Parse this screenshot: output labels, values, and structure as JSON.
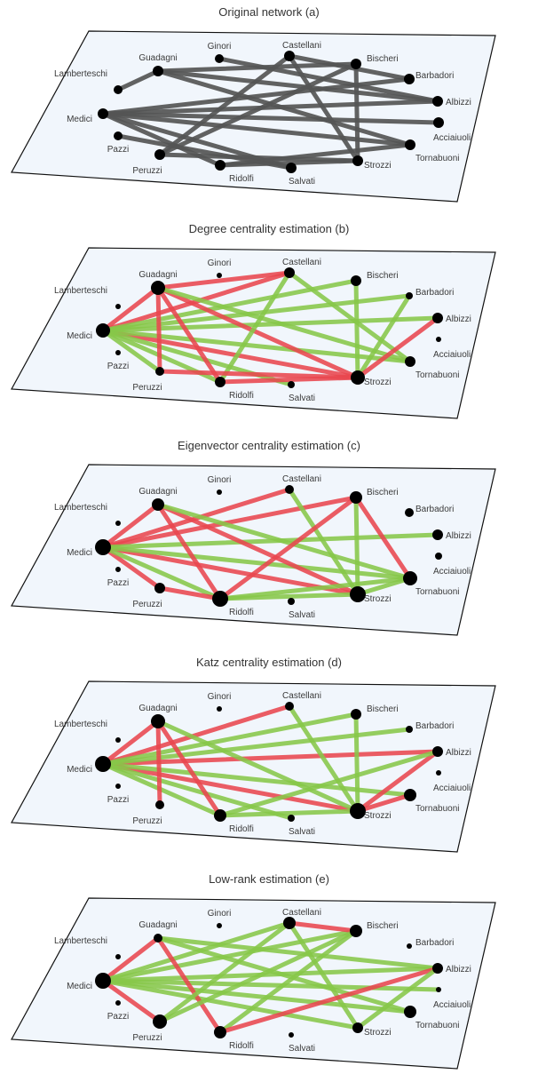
{
  "colors": {
    "plane_fill": "#f1f6fc",
    "plane_stroke": "#111111",
    "node": "#000000",
    "edge_original": "#555555",
    "edge_red": "#e8474e",
    "edge_green": "#86c749"
  },
  "nodes": [
    "Acciaiuoli",
    "Albizzi",
    "Barbadori",
    "Bischeri",
    "Castellani",
    "Ginori",
    "Guadagni",
    "Lamberteschi",
    "Medici",
    "Pazzi",
    "Peruzzi",
    "Ridolfi",
    "Salvati",
    "Strozzi",
    "Tornabuoni"
  ],
  "panels": [
    {
      "title": "Original network (a)",
      "edges": [
        [
          "Medici",
          "Albizzi",
          "o"
        ],
        [
          "Medici",
          "Barbadori",
          "o"
        ],
        [
          "Medici",
          "Acciaiuoli",
          "o"
        ],
        [
          "Medici",
          "Tornabuoni",
          "o"
        ],
        [
          "Medici",
          "Ridolfi",
          "o"
        ],
        [
          "Medici",
          "Salvati",
          "o"
        ],
        [
          "Guadagni",
          "Lamberteschi",
          "o"
        ],
        [
          "Guadagni",
          "Bischeri",
          "o"
        ],
        [
          "Guadagni",
          "Albizzi",
          "o"
        ],
        [
          "Guadagni",
          "Tornabuoni",
          "o"
        ],
        [
          "Castellani",
          "Peruzzi",
          "o"
        ],
        [
          "Castellani",
          "Barbadori",
          "o"
        ],
        [
          "Castellani",
          "Strozzi",
          "o"
        ],
        [
          "Bischeri",
          "Peruzzi",
          "o"
        ],
        [
          "Bischeri",
          "Strozzi",
          "o"
        ],
        [
          "Albizzi",
          "Ginori",
          "o"
        ],
        [
          "Peruzzi",
          "Strozzi",
          "o"
        ],
        [
          "Ridolfi",
          "Strozzi",
          "o"
        ],
        [
          "Ridolfi",
          "Tornabuoni",
          "o"
        ],
        [
          "Pazzi",
          "Salvati",
          "o"
        ]
      ],
      "node_sizes": {
        "Acciaiuoli": 6,
        "Albizzi": 6,
        "Barbadori": 6,
        "Bischeri": 6,
        "Castellani": 6,
        "Ginori": 5,
        "Guadagni": 6,
        "Lamberteschi": 5,
        "Medici": 6,
        "Pazzi": 5,
        "Peruzzi": 6,
        "Ridolfi": 6,
        "Salvati": 6,
        "Strozzi": 6,
        "Tornabuoni": 6
      }
    },
    {
      "title": "Degree centrality estimation (b)",
      "edges": [
        [
          "Medici",
          "Guadagni",
          "r"
        ],
        [
          "Medici",
          "Castellani",
          "r"
        ],
        [
          "Medici",
          "Strozzi",
          "r"
        ],
        [
          "Medici",
          "Bischeri",
          "g"
        ],
        [
          "Medici",
          "Barbadori",
          "g"
        ],
        [
          "Medici",
          "Albizzi",
          "g"
        ],
        [
          "Medici",
          "Tornabuoni",
          "g"
        ],
        [
          "Medici",
          "Peruzzi",
          "g"
        ],
        [
          "Medici",
          "Ridolfi",
          "g"
        ],
        [
          "Medici",
          "Salvati",
          "g"
        ],
        [
          "Guadagni",
          "Castellani",
          "r"
        ],
        [
          "Guadagni",
          "Peruzzi",
          "r"
        ],
        [
          "Guadagni",
          "Ridolfi",
          "r"
        ],
        [
          "Guadagni",
          "Strozzi",
          "r"
        ],
        [
          "Guadagni",
          "Tornabuoni",
          "g"
        ],
        [
          "Castellani",
          "Ridolfi",
          "g"
        ],
        [
          "Castellani",
          "Tornabuoni",
          "g"
        ],
        [
          "Bischeri",
          "Strozzi",
          "g"
        ],
        [
          "Barbadori",
          "Strozzi",
          "g"
        ],
        [
          "Albizzi",
          "Strozzi",
          "r"
        ],
        [
          "Peruzzi",
          "Strozzi",
          "r"
        ],
        [
          "Ridolfi",
          "Strozzi",
          "r"
        ]
      ],
      "node_sizes": {
        "Acciaiuoli": 3,
        "Albizzi": 6,
        "Barbadori": 4,
        "Bischeri": 6,
        "Castellani": 6,
        "Ginori": 3,
        "Guadagni": 8,
        "Lamberteschi": 3,
        "Medici": 8,
        "Pazzi": 3,
        "Peruzzi": 5,
        "Ridolfi": 6,
        "Salvati": 4,
        "Strozzi": 8,
        "Tornabuoni": 6
      }
    },
    {
      "title": "Eigenvector centrality estimation (c)",
      "edges": [
        [
          "Medici",
          "Bischeri",
          "r"
        ],
        [
          "Medici",
          "Castellani",
          "r"
        ],
        [
          "Medici",
          "Guadagni",
          "r"
        ],
        [
          "Medici",
          "Peruzzi",
          "r"
        ],
        [
          "Medici",
          "Strozzi",
          "r"
        ],
        [
          "Medici",
          "Albizzi",
          "g"
        ],
        [
          "Medici",
          "Tornabuoni",
          "g"
        ],
        [
          "Medici",
          "Ridolfi",
          "g"
        ],
        [
          "Guadagni",
          "Ridolfi",
          "r"
        ],
        [
          "Guadagni",
          "Strozzi",
          "r"
        ],
        [
          "Guadagni",
          "Tornabuoni",
          "g"
        ],
        [
          "Castellani",
          "Strozzi",
          "g"
        ],
        [
          "Bischeri",
          "Ridolfi",
          "r"
        ],
        [
          "Bischeri",
          "Tornabuoni",
          "r"
        ],
        [
          "Bischeri",
          "Strozzi",
          "g"
        ],
        [
          "Peruzzi",
          "Ridolfi",
          "r"
        ],
        [
          "Ridolfi",
          "Strozzi",
          "g"
        ],
        [
          "Ridolfi",
          "Tornabuoni",
          "g"
        ],
        [
          "Strozzi",
          "Tornabuoni",
          "g"
        ]
      ],
      "node_sizes": {
        "Acciaiuoli": 4,
        "Albizzi": 6,
        "Barbadori": 5,
        "Bischeri": 7,
        "Castellani": 5,
        "Ginori": 3,
        "Guadagni": 7,
        "Lamberteschi": 3,
        "Medici": 9,
        "Pazzi": 2.5,
        "Peruzzi": 6,
        "Ridolfi": 9,
        "Salvati": 4,
        "Strozzi": 9,
        "Tornabuoni": 8
      }
    },
    {
      "title": "Katz centrality estimation (d)",
      "edges": [
        [
          "Medici",
          "Guadagni",
          "r"
        ],
        [
          "Medici",
          "Castellani",
          "r"
        ],
        [
          "Medici",
          "Albizzi",
          "r"
        ],
        [
          "Medici",
          "Strozzi",
          "r"
        ],
        [
          "Medici",
          "Bischeri",
          "g"
        ],
        [
          "Medici",
          "Barbadori",
          "g"
        ],
        [
          "Medici",
          "Tornabuoni",
          "g"
        ],
        [
          "Medici",
          "Ridolfi",
          "g"
        ],
        [
          "Medici",
          "Salvati",
          "g"
        ],
        [
          "Guadagni",
          "Peruzzi",
          "r"
        ],
        [
          "Guadagni",
          "Ridolfi",
          "r"
        ],
        [
          "Guadagni",
          "Strozzi",
          "g"
        ],
        [
          "Castellani",
          "Strozzi",
          "g"
        ],
        [
          "Bischeri",
          "Strozzi",
          "g"
        ],
        [
          "Albizzi",
          "Strozzi",
          "r"
        ],
        [
          "Albizzi",
          "Ridolfi",
          "g"
        ],
        [
          "Ridolfi",
          "Strozzi",
          "g"
        ],
        [
          "Strozzi",
          "Tornabuoni",
          "r"
        ]
      ],
      "node_sizes": {
        "Acciaiuoli": 3,
        "Albizzi": 6,
        "Barbadori": 4,
        "Bischeri": 6,
        "Castellani": 5,
        "Ginori": 3,
        "Guadagni": 8,
        "Lamberteschi": 3,
        "Medici": 9,
        "Pazzi": 2.5,
        "Peruzzi": 5,
        "Ridolfi": 7,
        "Salvati": 4,
        "Strozzi": 9,
        "Tornabuoni": 7
      }
    },
    {
      "title": "Low-rank estimation (e)",
      "edges": [
        [
          "Medici",
          "Guadagni",
          "r"
        ],
        [
          "Medici",
          "Peruzzi",
          "r"
        ],
        [
          "Medici",
          "Castellani",
          "g"
        ],
        [
          "Medici",
          "Bischeri",
          "g"
        ],
        [
          "Medici",
          "Albizzi",
          "g"
        ],
        [
          "Medici",
          "Acciaiuoli",
          "g"
        ],
        [
          "Medici",
          "Tornabuoni",
          "g"
        ],
        [
          "Medici",
          "Strozzi",
          "g"
        ],
        [
          "Guadagni",
          "Ridolfi",
          "r"
        ],
        [
          "Guadagni",
          "Albizzi",
          "g"
        ],
        [
          "Guadagni",
          "Tornabuoni",
          "g"
        ],
        [
          "Castellani",
          "Bischeri",
          "r"
        ],
        [
          "Castellani",
          "Peruzzi",
          "g"
        ],
        [
          "Castellani",
          "Strozzi",
          "g"
        ],
        [
          "Bischeri",
          "Ridolfi",
          "g"
        ],
        [
          "Bischeri",
          "Peruzzi",
          "g"
        ],
        [
          "Ridolfi",
          "Albizzi",
          "r"
        ],
        [
          "Strozzi",
          "Albizzi",
          "g"
        ]
      ],
      "node_sizes": {
        "Acciaiuoli": 3,
        "Albizzi": 6,
        "Barbadori": 3,
        "Bischeri": 7,
        "Castellani": 7,
        "Ginori": 2.5,
        "Guadagni": 5,
        "Lamberteschi": 3,
        "Medici": 9,
        "Pazzi": 2.5,
        "Peruzzi": 8,
        "Ridolfi": 7,
        "Salvati": 2.5,
        "Strozzi": 6,
        "Tornabuoni": 7
      }
    }
  ]
}
